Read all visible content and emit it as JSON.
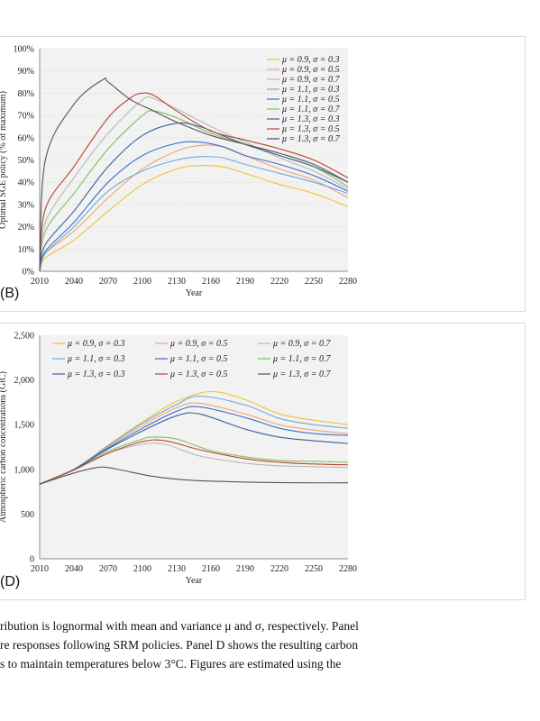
{
  "colors": {
    "plot_background": "#f2f2f2",
    "grid": "#d9d9d9",
    "series": [
      "#f2c12e",
      "#f4a36b",
      "#b8b8b8",
      "#6fa8dc",
      "#3a6ec8",
      "#7fbf5f",
      "#3d5f9a",
      "#b8442a",
      "#555555"
    ]
  },
  "panel_b": {
    "label": "(B)",
    "chart_data": {
      "type": "line",
      "title": "",
      "xlabel": "Year",
      "ylabel": "Optimal SGE policy (% of maximum)",
      "x_ticks": [
        "2010",
        "2040",
        "2070",
        "2100",
        "2130",
        "2160",
        "2190",
        "2220",
        "2250",
        "2280"
      ],
      "y_ticks": [
        "0%",
        "10%",
        "20%",
        "30%",
        "40%",
        "50%",
        "60%",
        "70%",
        "80%",
        "90%",
        "100%"
      ],
      "xlim": [
        2010,
        2280
      ],
      "ylim": [
        0,
        100
      ],
      "grid": true,
      "legend_position": "top-right",
      "series": [
        {
          "name": "μ = 0.9, σ = 0.3",
          "points": [
            [
              2010,
              0
            ],
            [
              2015,
              6
            ],
            [
              2040,
              14
            ],
            [
              2070,
              27
            ],
            [
              2100,
              39
            ],
            [
              2130,
              46
            ],
            [
              2150,
              47.5
            ],
            [
              2170,
              47
            ],
            [
              2190,
              44
            ],
            [
              2220,
              39
            ],
            [
              2250,
              35
            ],
            [
              2280,
              29
            ]
          ]
        },
        {
          "name": "μ = 0.9, σ = 0.5",
          "points": [
            [
              2010,
              0
            ],
            [
              2015,
              8
            ],
            [
              2040,
              18
            ],
            [
              2070,
              33
            ],
            [
              2100,
              46
            ],
            [
              2130,
              54
            ],
            [
              2150,
              56.5
            ],
            [
              2170,
              56
            ],
            [
              2190,
              52
            ],
            [
              2220,
              46
            ],
            [
              2250,
              41
            ],
            [
              2280,
              33
            ]
          ]
        },
        {
          "name": "μ = 0.9, σ = 0.7",
          "points": [
            [
              2010,
              0
            ],
            [
              2015,
              22
            ],
            [
              2040,
              42
            ],
            [
              2070,
              62
            ],
            [
              2100,
              77
            ],
            [
              2110,
              77.5
            ],
            [
              2130,
              73
            ],
            [
              2160,
              65
            ],
            [
              2190,
              58
            ],
            [
              2220,
              51
            ],
            [
              2250,
              45
            ],
            [
              2280,
              37
            ]
          ]
        },
        {
          "name": "μ = 1.1, σ = 0.3",
          "points": [
            [
              2010,
              0
            ],
            [
              2015,
              8
            ],
            [
              2040,
              20
            ],
            [
              2070,
              36
            ],
            [
              2100,
              45
            ],
            [
              2130,
              50
            ],
            [
              2150,
              51.5
            ],
            [
              2170,
              51
            ],
            [
              2190,
              48
            ],
            [
              2220,
              44
            ],
            [
              2250,
              40
            ],
            [
              2280,
              35
            ]
          ]
        },
        {
          "name": "μ = 1.1, σ = 0.5",
          "points": [
            [
              2010,
              0
            ],
            [
              2015,
              9
            ],
            [
              2040,
              22
            ],
            [
              2070,
              40
            ],
            [
              2100,
              52
            ],
            [
              2130,
              57.5
            ],
            [
              2150,
              58
            ],
            [
              2170,
              56
            ],
            [
              2190,
              52
            ],
            [
              2220,
              48
            ],
            [
              2250,
              43
            ],
            [
              2280,
              36
            ]
          ]
        },
        {
          "name": "μ = 1.1, σ = 0.7",
          "points": [
            [
              2010,
              0
            ],
            [
              2015,
              18
            ],
            [
              2040,
              35
            ],
            [
              2070,
              55
            ],
            [
              2100,
              70
            ],
            [
              2110,
              72
            ],
            [
              2130,
              69
            ],
            [
              2160,
              62
            ],
            [
              2190,
              57
            ],
            [
              2220,
              52
            ],
            [
              2250,
              47
            ],
            [
              2280,
              38
            ]
          ]
        },
        {
          "name": "μ = 1.3, σ = 0.3",
          "points": [
            [
              2010,
              0
            ],
            [
              2015,
              12
            ],
            [
              2040,
              27
            ],
            [
              2070,
              47
            ],
            [
              2100,
              61
            ],
            [
              2130,
              66.5
            ],
            [
              2150,
              65
            ],
            [
              2170,
              61
            ],
            [
              2190,
              57
            ],
            [
              2220,
              52
            ],
            [
              2250,
              47
            ],
            [
              2280,
              40
            ]
          ]
        },
        {
          "name": "μ = 1.3, σ = 0.5",
          "points": [
            [
              2010,
              0
            ],
            [
              2015,
              28
            ],
            [
              2040,
              47
            ],
            [
              2070,
              69
            ],
            [
              2090,
              78
            ],
            [
              2100,
              80
            ],
            [
              2110,
              79
            ],
            [
              2130,
              72
            ],
            [
              2160,
              63
            ],
            [
              2190,
              59
            ],
            [
              2220,
              55
            ],
            [
              2250,
              50
            ],
            [
              2280,
              42
            ]
          ]
        },
        {
          "name": "μ = 1.3, σ = 0.7",
          "points": [
            [
              2010,
              0
            ],
            [
              2015,
              50
            ],
            [
              2040,
              75
            ],
            [
              2065,
              86
            ],
            [
              2070,
              85
            ],
            [
              2090,
              77
            ],
            [
              2110,
              72
            ],
            [
              2130,
              67
            ],
            [
              2160,
              61
            ],
            [
              2190,
              57
            ],
            [
              2220,
              53
            ],
            [
              2250,
              48
            ],
            [
              2280,
              40
            ]
          ]
        }
      ]
    }
  },
  "panel_d": {
    "label": "(D)",
    "chart_data": {
      "type": "line",
      "title": "",
      "xlabel": "Year",
      "ylabel": "Atmospheric carbon concentrations (GtC)",
      "x_ticks": [
        "2010",
        "2040",
        "2070",
        "2100",
        "2130",
        "2160",
        "2190",
        "2220",
        "2250",
        "2280"
      ],
      "y_ticks": [
        "0",
        "500",
        "1,000",
        "1,500",
        "2,000",
        "2,500"
      ],
      "xlim": [
        2010,
        2280
      ],
      "ylim": [
        0,
        2500
      ],
      "grid": false,
      "legend_position": "top",
      "series": [
        {
          "name": "μ = 0.9, σ = 0.3",
          "points": [
            [
              2010,
              835
            ],
            [
              2040,
              1000
            ],
            [
              2070,
              1270
            ],
            [
              2100,
              1530
            ],
            [
              2130,
              1760
            ],
            [
              2160,
              1870
            ],
            [
              2190,
              1780
            ],
            [
              2220,
              1620
            ],
            [
              2250,
              1550
            ],
            [
              2280,
              1500
            ]
          ]
        },
        {
          "name": "μ = 0.9, σ = 0.5",
          "points": [
            [
              2010,
              835
            ],
            [
              2040,
              1000
            ],
            [
              2070,
              1255
            ],
            [
              2100,
              1490
            ],
            [
              2130,
              1690
            ],
            [
              2150,
              1740
            ],
            [
              2190,
              1620
            ],
            [
              2220,
              1500
            ],
            [
              2250,
              1440
            ],
            [
              2280,
              1400
            ]
          ]
        },
        {
          "name": "μ = 0.9, σ = 0.7",
          "points": [
            [
              2010,
              835
            ],
            [
              2040,
              990
            ],
            [
              2070,
              1180
            ],
            [
              2100,
              1280
            ],
            [
              2120,
              1280
            ],
            [
              2150,
              1150
            ],
            [
              2190,
              1070
            ],
            [
              2220,
              1040
            ],
            [
              2250,
              1030
            ],
            [
              2280,
              1020
            ]
          ]
        },
        {
          "name": "μ = 1.1, σ = 0.3",
          "points": [
            [
              2010,
              835
            ],
            [
              2040,
              1000
            ],
            [
              2070,
              1265
            ],
            [
              2100,
              1515
            ],
            [
              2130,
              1725
            ],
            [
              2150,
              1820
            ],
            [
              2190,
              1720
            ],
            [
              2220,
              1570
            ],
            [
              2250,
              1500
            ],
            [
              2280,
              1460
            ]
          ]
        },
        {
          "name": "μ = 1.1, σ = 0.5",
          "points": [
            [
              2010,
              835
            ],
            [
              2040,
              1000
            ],
            [
              2070,
              1240
            ],
            [
              2100,
              1460
            ],
            [
              2130,
              1650
            ],
            [
              2150,
              1700
            ],
            [
              2190,
              1580
            ],
            [
              2220,
              1460
            ],
            [
              2250,
              1400
            ],
            [
              2280,
              1380
            ]
          ]
        },
        {
          "name": "μ = 1.1, σ = 0.7",
          "points": [
            [
              2010,
              835
            ],
            [
              2040,
              995
            ],
            [
              2070,
              1200
            ],
            [
              2100,
              1340
            ],
            [
              2110,
              1360
            ],
            [
              2130,
              1340
            ],
            [
              2160,
              1210
            ],
            [
              2190,
              1140
            ],
            [
              2220,
              1100
            ],
            [
              2250,
              1090
            ],
            [
              2280,
              1080
            ]
          ]
        },
        {
          "name": "μ = 1.3, σ = 0.3",
          "points": [
            [
              2010,
              835
            ],
            [
              2040,
              1000
            ],
            [
              2070,
              1230
            ],
            [
              2100,
              1430
            ],
            [
              2130,
              1600
            ],
            [
              2150,
              1620
            ],
            [
              2190,
              1450
            ],
            [
              2220,
              1360
            ],
            [
              2250,
              1320
            ],
            [
              2280,
              1290
            ]
          ]
        },
        {
          "name": "μ = 1.3, σ = 0.5",
          "points": [
            [
              2010,
              835
            ],
            [
              2040,
              995
            ],
            [
              2070,
              1180
            ],
            [
              2100,
              1310
            ],
            [
              2120,
              1320
            ],
            [
              2150,
              1220
            ],
            [
              2190,
              1120
            ],
            [
              2220,
              1080
            ],
            [
              2250,
              1060
            ],
            [
              2280,
              1050
            ]
          ]
        },
        {
          "name": "μ = 1.3, σ = 0.7",
          "points": [
            [
              2010,
              835
            ],
            [
              2040,
              960
            ],
            [
              2060,
              1020
            ],
            [
              2070,
              1020
            ],
            [
              2090,
              970
            ],
            [
              2110,
              920
            ],
            [
              2140,
              880
            ],
            [
              2170,
              865
            ],
            [
              2200,
              855
            ],
            [
              2240,
              850
            ],
            [
              2280,
              850
            ]
          ]
        }
      ]
    }
  },
  "caption": {
    "lines": [
      "ribution is lognormal with mean and variance μ and σ, respectively. Panel",
      "re responses following SRM policies. Panel D shows the resulting carbon",
      "s to maintain temperatures below 3°C. Figures are estimated using the"
    ]
  }
}
